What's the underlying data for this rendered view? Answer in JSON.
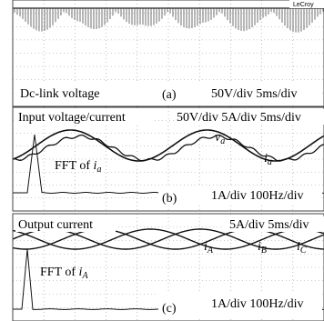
{
  "panels": [
    {
      "brand": "LeCroy",
      "caption": "Dc-link voltage",
      "tag": "(a)",
      "scale": "50V/div 5ms/div"
    },
    {
      "caption": "Input voltage/current",
      "scale_top": "50V/div 5A/div 5ms/div",
      "labels": [
        {
          "symbol": "v",
          "subscript": "a"
        },
        {
          "symbol": "i",
          "subscript": "a"
        }
      ],
      "fft": {
        "text": "FFT of ",
        "symbol": "i",
        "subscript": "a"
      },
      "tag": "(b)",
      "scale": "1A/div 100Hz/div"
    },
    {
      "caption": "Output current",
      "scale_top": "5A/div 5ms/div",
      "labels": [
        {
          "symbol": "i",
          "subscript": "A"
        },
        {
          "symbol": "i",
          "subscript": "B"
        },
        {
          "symbol": "i",
          "subscript": "C"
        }
      ],
      "fft": {
        "text": "FFT of ",
        "symbol": "i",
        "subscript": "A"
      },
      "tag": "(c)",
      "scale": "1A/div 100Hz/div"
    }
  ]
}
